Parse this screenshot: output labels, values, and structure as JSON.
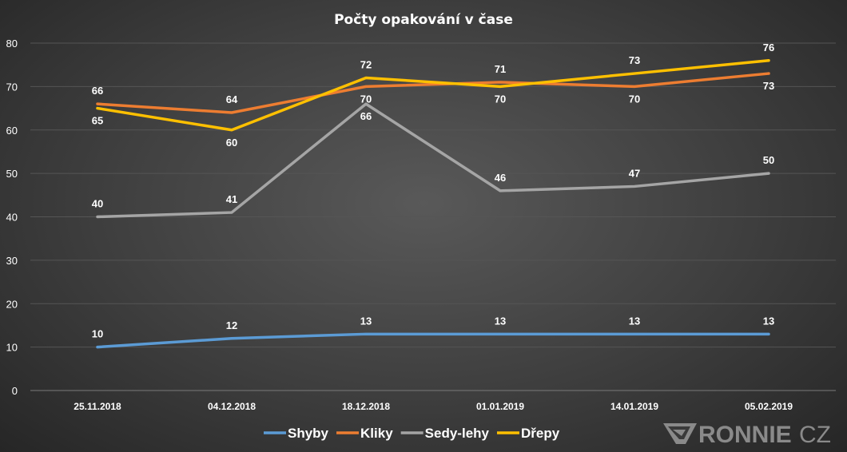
{
  "chart_data": {
    "type": "line",
    "title": "Počty opakování v čase",
    "categories": [
      "25.11.2018",
      "04.12.2018",
      "18.12.2018",
      "01.01.2019",
      "14.01.2019",
      "05.02.2019"
    ],
    "ylim": [
      0,
      80
    ],
    "yticks": [
      0,
      10,
      20,
      30,
      40,
      50,
      60,
      70,
      80
    ],
    "grid": true,
    "legend_position": "bottom",
    "series": [
      {
        "name": "Shyby",
        "color": "#5b9bd5",
        "values": [
          10,
          12,
          13,
          13,
          13,
          13
        ]
      },
      {
        "name": "Kliky",
        "color": "#ed7d31",
        "values": [
          66,
          64,
          70,
          71,
          70,
          73
        ]
      },
      {
        "name": "Sedy-lehy",
        "color": "#a5a5a5",
        "values": [
          40,
          41,
          66,
          46,
          47,
          50
        ]
      },
      {
        "name": "Dřepy",
        "color": "#ffc000",
        "values": [
          65,
          60,
          72,
          70,
          73,
          76
        ]
      }
    ]
  },
  "logo": {
    "text_bold": "RONNIE",
    "text_light": "CZ",
    "icon": "ronnie-arrow-icon"
  }
}
